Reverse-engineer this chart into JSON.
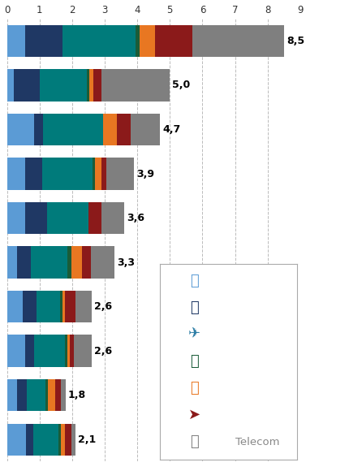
{
  "bars": [
    {
      "total": 8.5,
      "segments": [
        0.55,
        1.15,
        2.25,
        0.12,
        0.48,
        1.15,
        2.8
      ]
    },
    {
      "total": 5.0,
      "segments": [
        0.22,
        0.78,
        1.45,
        0.08,
        0.12,
        0.25,
        2.1
      ]
    },
    {
      "total": 4.7,
      "segments": [
        0.82,
        0.28,
        1.85,
        0.0,
        0.42,
        0.43,
        0.9
      ]
    },
    {
      "total": 3.9,
      "segments": [
        0.55,
        0.52,
        1.55,
        0.08,
        0.2,
        0.15,
        0.85
      ]
    },
    {
      "total": 3.6,
      "segments": [
        0.55,
        0.68,
        1.28,
        0.0,
        0.0,
        0.38,
        0.71
      ]
    },
    {
      "total": 3.3,
      "segments": [
        0.32,
        0.42,
        1.12,
        0.12,
        0.32,
        0.28,
        0.72
      ]
    },
    {
      "total": 2.6,
      "segments": [
        0.48,
        0.42,
        0.72,
        0.08,
        0.08,
        0.32,
        0.5
      ]
    },
    {
      "total": 2.6,
      "segments": [
        0.55,
        0.28,
        0.95,
        0.08,
        0.08,
        0.12,
        0.54
      ]
    },
    {
      "total": 1.8,
      "segments": [
        0.32,
        0.28,
        0.58,
        0.08,
        0.22,
        0.18,
        0.14
      ]
    },
    {
      "total": 2.1,
      "segments": [
        0.58,
        0.22,
        0.78,
        0.08,
        0.12,
        0.2,
        0.12
      ]
    }
  ],
  "colors": [
    "#5B9BD5",
    "#1F3864",
    "#007B7B",
    "#1A5C38",
    "#E87722",
    "#8B1A1A",
    "#7F7F7F"
  ],
  "labels": [
    "8,5",
    "5,0",
    "4,7",
    "3,9",
    "3,6",
    "3,3",
    "2,6",
    "2,6",
    "1,8",
    "2,1"
  ],
  "xlim": [
    0,
    9
  ],
  "xticks": [
    0,
    1,
    2,
    3,
    4,
    5,
    6,
    7,
    8,
    9
  ],
  "background_color": "#FFFFFF",
  "bar_height": 0.72
}
